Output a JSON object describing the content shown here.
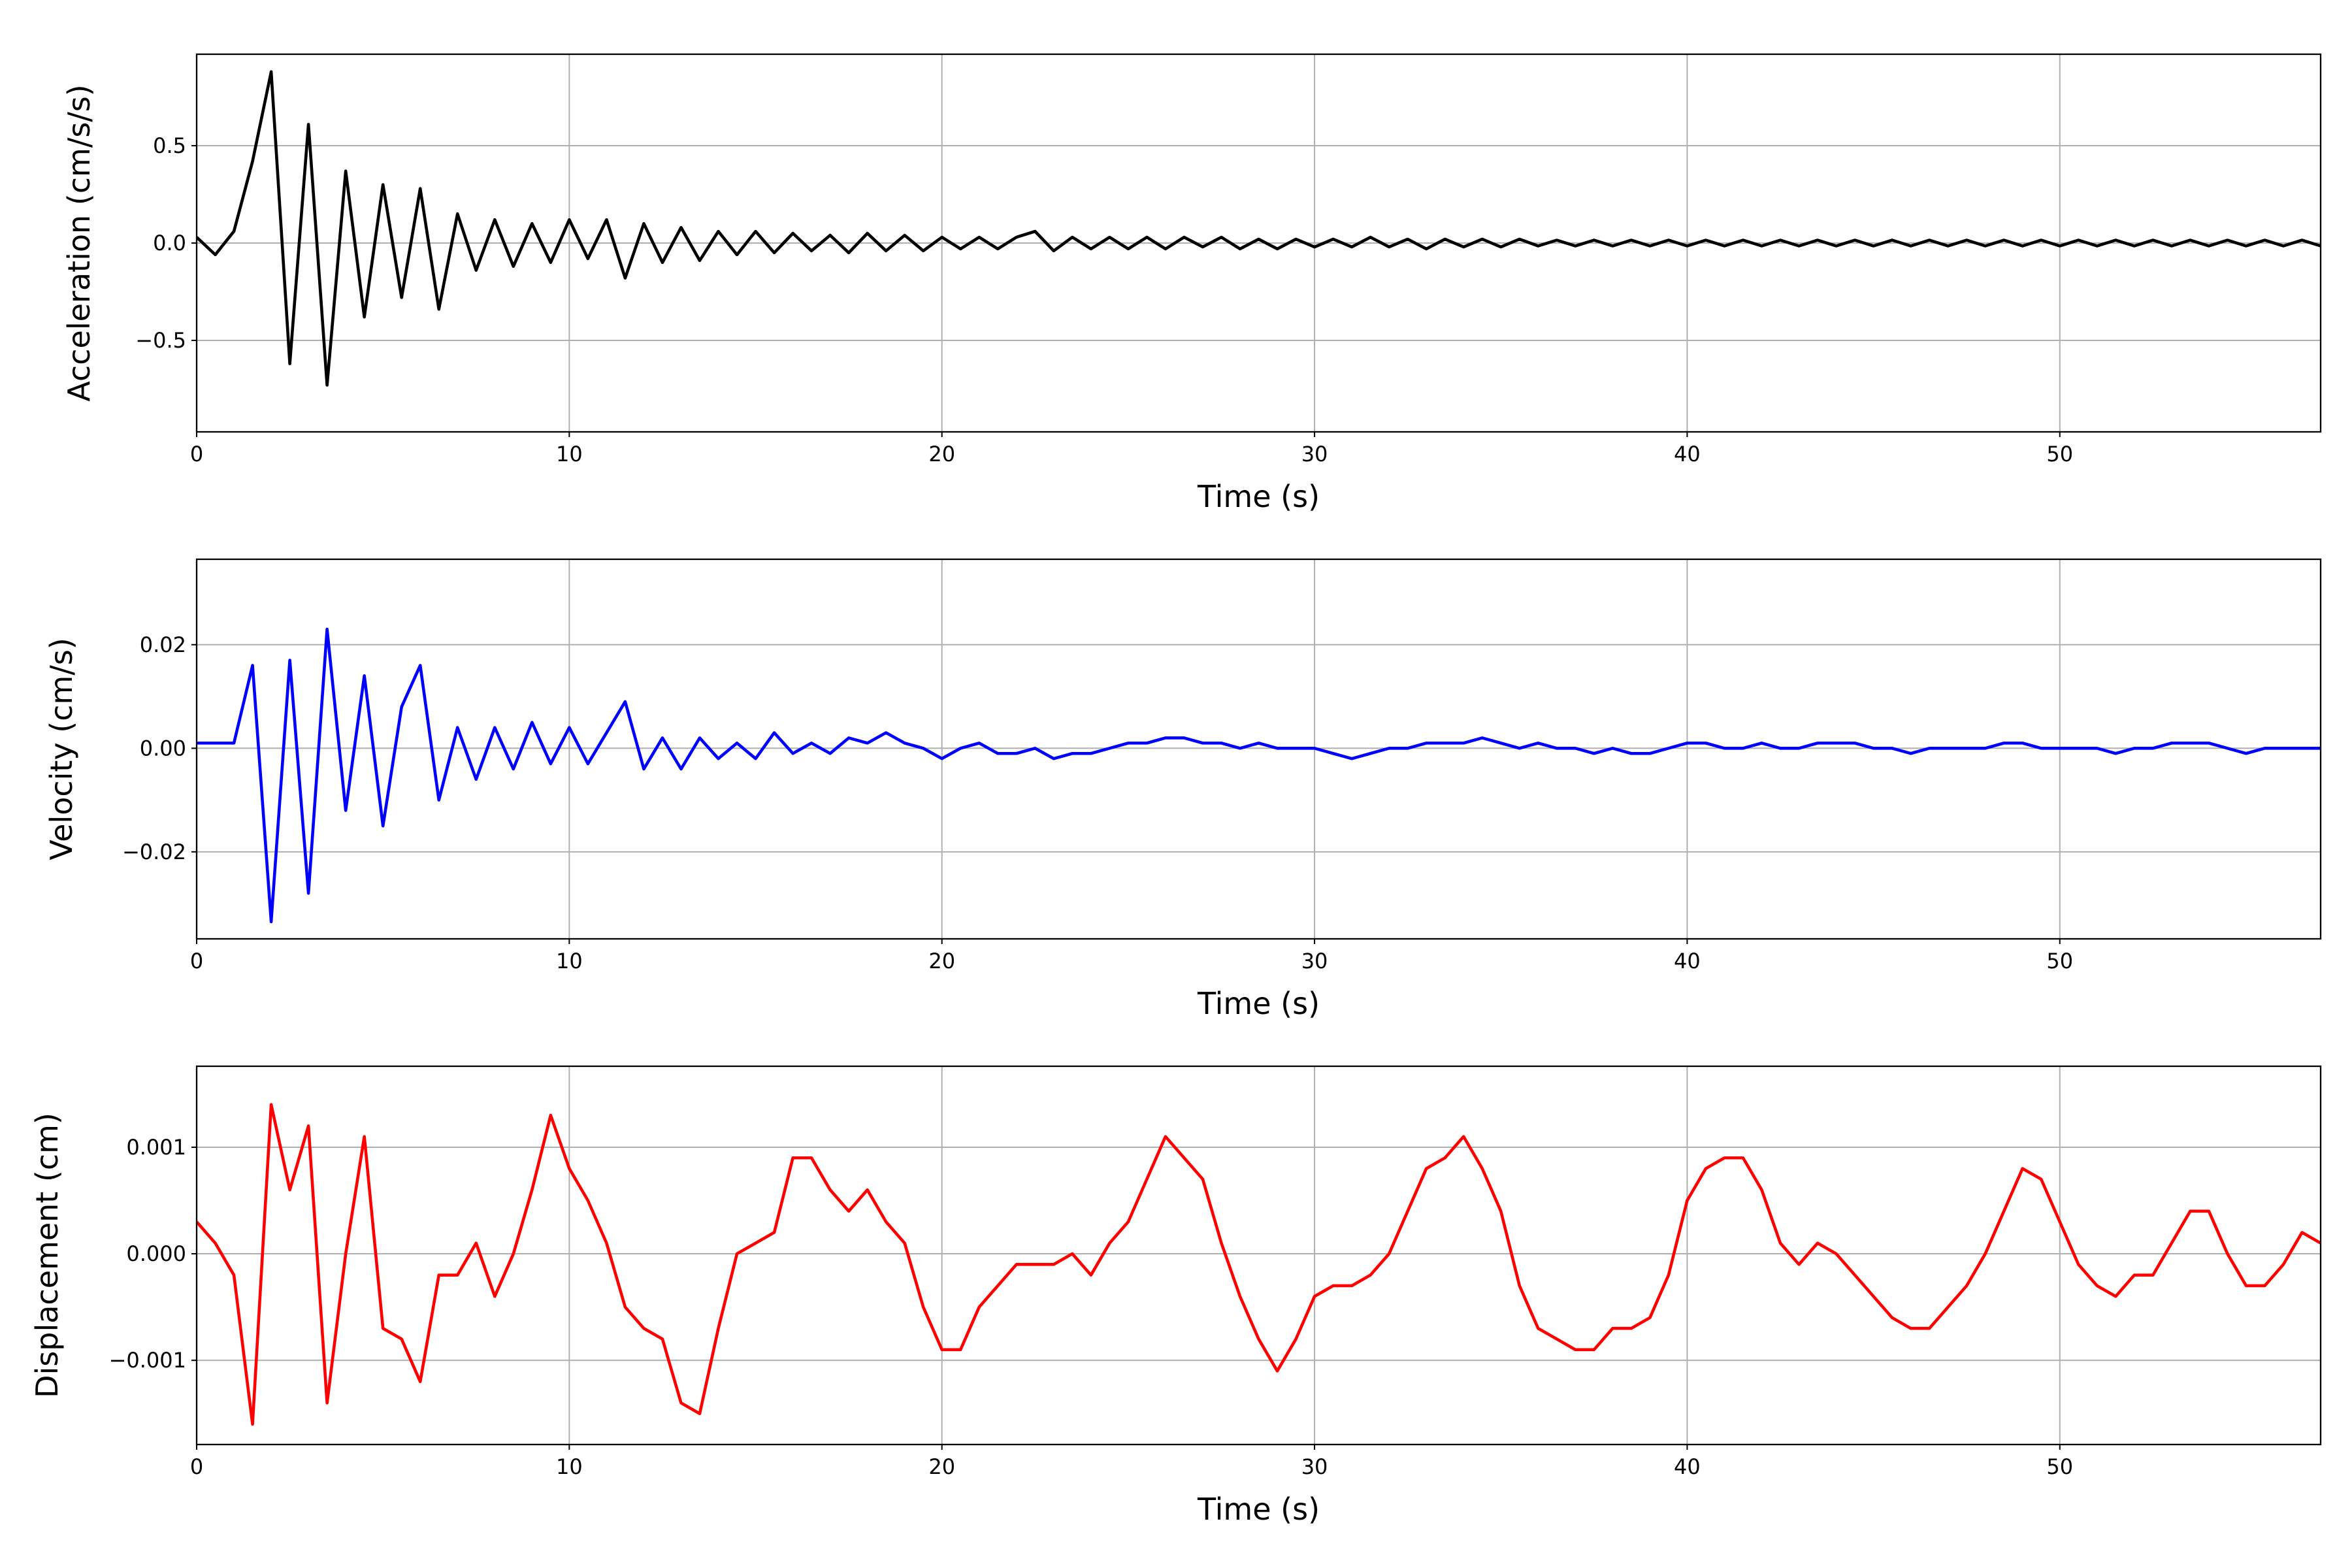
{
  "chart_data": [
    {
      "type": "line",
      "xlabel": "Time (s)",
      "ylabel": "Acceleration (cm/s/s)",
      "color": "#000000",
      "grid": true,
      "xlim": [
        0,
        57
      ],
      "xticks": [
        0,
        10,
        20,
        30,
        40,
        50
      ],
      "ylim": [
        -0.97,
        0.97
      ],
      "yticks": [
        {
          "value": -0.5,
          "label": "−0.5"
        },
        {
          "value": 0,
          "label": "0.0"
        },
        0.5
      ],
      "x": [
        0,
        0.5,
        1,
        1.5,
        2,
        2.5,
        3,
        3.5,
        4,
        4.5,
        5,
        5.5,
        6,
        6.5,
        7,
        7.5,
        8,
        8.5,
        9,
        9.5,
        10,
        10.5,
        11,
        11.5,
        12,
        12.5,
        13,
        13.5,
        14,
        14.5,
        15,
        15.5,
        16,
        16.5,
        17,
        17.5,
        18,
        18.5,
        19,
        19.5,
        20,
        20.5,
        21,
        21.5,
        22,
        22.5,
        23,
        23.5,
        24,
        24.5,
        25,
        25.5,
        26,
        26.5,
        27,
        27.5,
        28,
        28.5,
        29,
        29.5,
        30,
        30.5,
        31,
        31.5,
        32,
        32.5,
        33,
        33.5,
        34,
        34.5,
        35,
        35.5,
        36,
        36.5,
        37,
        37.5,
        38,
        38.5,
        39,
        39.5,
        40,
        40.5,
        41,
        41.5,
        42,
        42.5,
        43,
        43.5,
        44,
        44.5,
        45,
        45.5,
        46,
        46.5,
        47,
        47.5,
        48,
        48.5,
        49,
        49.5,
        50,
        50.5,
        51,
        51.5,
        52,
        52.5,
        53,
        53.5,
        54,
        54.5,
        55,
        55.5,
        56,
        56.5,
        57
      ],
      "values": [
        0.03,
        -0.06,
        0.06,
        0.42,
        0.88,
        -0.62,
        0.61,
        -0.73,
        0.37,
        -0.38,
        0.3,
        -0.28,
        0.28,
        -0.34,
        0.15,
        -0.14,
        0.12,
        -0.12,
        0.1,
        -0.1,
        0.12,
        -0.08,
        0.12,
        -0.18,
        0.1,
        -0.1,
        0.08,
        -0.09,
        0.06,
        -0.06,
        0.06,
        -0.05,
        0.05,
        -0.04,
        0.04,
        -0.05,
        0.05,
        -0.04,
        0.04,
        -0.04,
        0.03,
        -0.03,
        0.03,
        -0.03,
        0.03,
        0.06,
        -0.04,
        0.03,
        -0.03,
        0.03,
        -0.03,
        0.03,
        -0.03,
        0.03,
        -0.02,
        0.03,
        -0.03,
        0.02,
        -0.03,
        0.02,
        -0.02,
        0.02,
        -0.02,
        0.03,
        -0.02,
        0.02,
        -0.03,
        0.02,
        -0.02,
        0.02,
        -0.02,
        0.02,
        -0.015,
        0.015,
        -0.015,
        0.015,
        -0.015,
        0.015,
        -0.015,
        0.015,
        -0.015,
        0.015,
        -0.015,
        0.015,
        -0.015,
        0.015,
        -0.015,
        0.015,
        -0.015,
        0.015,
        -0.015,
        0.015,
        -0.015,
        0.015,
        -0.015,
        0.015,
        -0.015,
        0.015,
        -0.015,
        0.015,
        -0.015,
        0.015,
        -0.015,
        0.015,
        -0.015,
        0.015,
        -0.015,
        0.015,
        -0.015,
        0.015,
        -0.015,
        0.015,
        -0.015,
        0.015,
        -0.015
      ]
    },
    {
      "type": "line",
      "xlabel": "Time (s)",
      "ylabel": "Velocity (cm/s)",
      "color": "#0000ff",
      "grid": true,
      "xlim": [
        0,
        57
      ],
      "xticks": [
        0,
        10,
        20,
        30,
        40,
        50
      ],
      "ylim": [
        -0.0368,
        0.0365
      ],
      "yticks": [
        {
          "value": -0.02,
          "label": "−0.02"
        },
        {
          "value": 0,
          "label": "0.00"
        },
        0.02
      ],
      "x": [
        0,
        0.5,
        1,
        1.5,
        2,
        2.5,
        3,
        3.5,
        4,
        4.5,
        5,
        5.5,
        6,
        6.5,
        7,
        7.5,
        8,
        8.5,
        9,
        9.5,
        10,
        10.5,
        11,
        11.5,
        12,
        12.5,
        13,
        13.5,
        14,
        14.5,
        15,
        15.5,
        16,
        16.5,
        17,
        17.5,
        18,
        18.5,
        19,
        19.5,
        20,
        20.5,
        21,
        21.5,
        22,
        22.5,
        23,
        23.5,
        24,
        24.5,
        25,
        25.5,
        26,
        26.5,
        27,
        27.5,
        28,
        28.5,
        29,
        29.5,
        30,
        30.5,
        31,
        31.5,
        32,
        32.5,
        33,
        33.5,
        34,
        34.5,
        35,
        35.5,
        36,
        36.5,
        37,
        37.5,
        38,
        38.5,
        39,
        39.5,
        40,
        40.5,
        41,
        41.5,
        42,
        42.5,
        43,
        43.5,
        44,
        44.5,
        45,
        45.5,
        46,
        46.5,
        47,
        47.5,
        48,
        48.5,
        49,
        49.5,
        50,
        50.5,
        51,
        51.5,
        52,
        52.5,
        53,
        53.5,
        54,
        54.5,
        55,
        55.5,
        56,
        56.5,
        57
      ],
      "values": [
        0.001,
        0.001,
        0.001,
        0.016,
        -0.0335,
        0.017,
        -0.028,
        0.023,
        -0.012,
        0.014,
        -0.015,
        0.008,
        0.016,
        -0.01,
        0.004,
        -0.006,
        0.004,
        -0.004,
        0.005,
        -0.003,
        0.004,
        -0.003,
        0.003,
        0.009,
        -0.004,
        0.002,
        -0.004,
        0.002,
        -0.002,
        0.001,
        -0.002,
        0.003,
        -0.001,
        0.001,
        -0.001,
        0.002,
        0.001,
        0.003,
        0.001,
        0.0,
        -0.002,
        0.0,
        0.001,
        -0.001,
        -0.001,
        0.0,
        -0.002,
        -0.001,
        -0.001,
        0.0,
        0.001,
        0.001,
        0.002,
        0.002,
        0.001,
        0.001,
        0.0,
        0.001,
        0.0,
        0.0,
        0.0,
        -0.001,
        -0.002,
        -0.001,
        0.0,
        0.0,
        0.001,
        0.001,
        0.001,
        0.002,
        0.001,
        0.0,
        0.001,
        0.0,
        0.0,
        -0.001,
        0.0,
        -0.001,
        -0.001,
        0.0,
        0.001,
        0.001,
        0.0,
        0.0,
        0.001,
        0.0,
        0.0,
        0.001,
        0.001,
        0.001,
        0.0,
        0.0,
        -0.001,
        0.0,
        0.0,
        0.0,
        0.0,
        0.001,
        0.001,
        0.0,
        0.0,
        0.0,
        0.0,
        -0.001,
        0.0,
        0.0,
        0.001,
        0.001,
        0.001,
        0.0,
        -0.001,
        0.0,
        0.0,
        0.0,
        0.0
      ]
    },
    {
      "type": "line",
      "xlabel": "Time (s)",
      "ylabel": "Displacement (cm)",
      "color": "#ff0000",
      "grid": true,
      "xlim": [
        0,
        57
      ],
      "xticks": [
        0,
        10,
        20,
        30,
        40,
        50
      ],
      "ylim": [
        -0.00179,
        0.00176
      ],
      "yticks": [
        {
          "value": -0.001,
          "label": "−0.001"
        },
        {
          "value": 0,
          "label": "0.000"
        },
        0.001
      ],
      "x": [
        0,
        0.5,
        1,
        1.5,
        2,
        2.5,
        3,
        3.5,
        4,
        4.5,
        5,
        5.5,
        6,
        6.5,
        7,
        7.5,
        8,
        8.5,
        9,
        9.5,
        10,
        10.5,
        11,
        11.5,
        12,
        12.5,
        13,
        13.5,
        14,
        14.5,
        15,
        15.5,
        16,
        16.5,
        17,
        17.5,
        18,
        18.5,
        19,
        19.5,
        20,
        20.5,
        21,
        21.5,
        22,
        22.5,
        23,
        23.5,
        24,
        24.5,
        25,
        25.5,
        26,
        26.5,
        27,
        27.5,
        28,
        28.5,
        29,
        29.5,
        30,
        30.5,
        31,
        31.5,
        32,
        32.5,
        33,
        33.5,
        34,
        34.5,
        35,
        35.5,
        36,
        36.5,
        37,
        37.5,
        38,
        38.5,
        39,
        39.5,
        40,
        40.5,
        41,
        41.5,
        42,
        42.5,
        43,
        43.5,
        44,
        44.5,
        45,
        45.5,
        46,
        46.5,
        47,
        47.5,
        48,
        48.5,
        49,
        49.5,
        50,
        50.5,
        51,
        51.5,
        52,
        52.5,
        53,
        53.5,
        54,
        54.5,
        55,
        55.5,
        56,
        56.5,
        57
      ],
      "values": [
        0.0003,
        0.0001,
        -0.0002,
        -0.0016,
        0.0014,
        0.0006,
        0.0012,
        -0.0014,
        0.0,
        0.0011,
        -0.0007,
        -0.0008,
        -0.0012,
        -0.0002,
        -0.0002,
        0.0001,
        -0.0004,
        0.0,
        0.0006,
        0.0013,
        0.0008,
        0.0005,
        0.0001,
        -0.0005,
        -0.0007,
        -0.0008,
        -0.0014,
        -0.0015,
        -0.0007,
        0.0,
        0.0001,
        0.0002,
        0.0009,
        0.0009,
        0.0006,
        0.0004,
        0.0006,
        0.0003,
        0.0001,
        -0.0005,
        -0.0009,
        -0.0009,
        -0.0005,
        -0.0003,
        -0.0001,
        -0.0001,
        -0.0001,
        0.0,
        -0.0002,
        0.0001,
        0.0003,
        0.0007,
        0.0011,
        0.0009,
        0.0007,
        0.0001,
        -0.0004,
        -0.0008,
        -0.0011,
        -0.0008,
        -0.0004,
        -0.0003,
        -0.0003,
        -0.0002,
        0.0,
        0.0004,
        0.0008,
        0.0009,
        0.0011,
        0.0008,
        0.0004,
        -0.0003,
        -0.0007,
        -0.0008,
        -0.0009,
        -0.0009,
        -0.0007,
        -0.0007,
        -0.0006,
        -0.0002,
        0.0005,
        0.0008,
        0.0009,
        0.0009,
        0.0006,
        0.0001,
        -0.0001,
        0.0001,
        0.0,
        -0.0002,
        -0.0004,
        -0.0006,
        -0.0007,
        -0.0007,
        -0.0005,
        -0.0003,
        0.0,
        0.0004,
        0.0008,
        0.0007,
        0.0003,
        -0.0001,
        -0.0003,
        -0.0004,
        -0.0002,
        -0.0002,
        0.0001,
        0.0004,
        0.0004,
        0.0,
        -0.0003,
        -0.0003,
        -0.0001,
        0.0002,
        0.0001
      ]
    }
  ]
}
